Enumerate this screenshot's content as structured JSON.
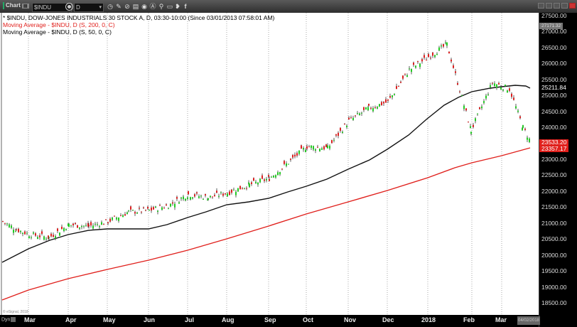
{
  "toolbar": {
    "chart_label": "Chart",
    "chart_badge": "???",
    "symbol": "$INDU",
    "interval": "D",
    "dropdown_glyph": "▾",
    "icons": [
      "link-icon",
      "clock-icon",
      "pencil-icon",
      "drawing-icon",
      "study-icon",
      "play-icon",
      "alert-icon",
      "chain-icon",
      "comment-icon",
      "twitter-icon",
      "facebook-icon"
    ],
    "window_buttons": [
      "restore",
      "minimize-dup",
      "minimize",
      "maximize",
      "close"
    ]
  },
  "legend": [
    {
      "text": "* $INDU, DOW-JONES INDUSTRIALS 30 STOCK A, D, 03:30-10:00 (Since 03/01/2013 07:58:01 AM)",
      "color": "#000000"
    },
    {
      "text": "Moving Average - $INDU, D (S, 200, 0, C)",
      "color": "#e0201c"
    },
    {
      "text": "Moving Average - $INDU, D (S, 50, 0, C)",
      "color": "#000000"
    }
  ],
  "price_tags": {
    "top_gray": "27171.32",
    "ma50": "25211.84",
    "last": "23533.20",
    "ma200": "23357.17"
  },
  "x_axis": {
    "dyn_label": "Dyn",
    "current_date": "04/02/2018",
    "copyright": "© eSignal, 2018"
  },
  "chart_data": {
    "type": "candlestick",
    "title": "$INDU, DOW-JONES INDUSTRIALS 30 STOCK A, D, 03:30-10:00 (Since 03/01/2013 07:58:01 AM)",
    "xlabel": "",
    "ylabel": "",
    "y_tick_labels": [
      "27500.00",
      "27000.00",
      "26500.00",
      "26000.00",
      "25500.00",
      "25000.00",
      "24500.00",
      "24000.00",
      "23500.00",
      "23000.00",
      "22500.00",
      "22000.00",
      "21500.00",
      "21000.00",
      "20500.00",
      "20000.00",
      "19500.00",
      "19000.00",
      "18500.00"
    ],
    "x_tick_labels": [
      "Mar",
      "Apr",
      "May",
      "Jun",
      "Jul",
      "Aug",
      "Sep",
      "Oct",
      "Nov",
      "Dec",
      "2018",
      "Feb",
      "Mar"
    ],
    "ylim": [
      18300,
      27650
    ],
    "grid": "vertical dotted at month boundaries",
    "legend_position": "top-left",
    "approx_close_by_month_start": {
      "Mar 2017": 20800,
      "Apr 2017": 20650,
      "May 2017": 20950,
      "Jun 2017": 21050,
      "Jul 2017": 21350,
      "Aug 2017": 21900,
      "Sep 2017": 21950,
      "Oct 2017": 22400,
      "Nov 2017": 23400,
      "Dec 2017": 24200,
      "Jan 2018": 24800,
      "late Jan 2018 peak": 26600,
      "Feb 2018": 24500,
      "Feb 2018 low": 23800,
      "Mar 2018": 24800,
      "Apr 2 2018": 23533
    },
    "series": [
      {
        "name": "$INDU daily close (approx)",
        "x": [
          "2017-03-01",
          "2017-03-15",
          "2017-04-01",
          "2017-04-15",
          "2017-05-01",
          "2017-05-15",
          "2017-06-01",
          "2017-06-15",
          "2017-07-01",
          "2017-07-15",
          "2017-08-01",
          "2017-08-15",
          "2017-09-01",
          "2017-09-15",
          "2017-10-01",
          "2017-10-15",
          "2017-11-01",
          "2017-11-15",
          "2017-12-01",
          "2017-12-15",
          "2018-01-01",
          "2018-01-15",
          "2018-01-26",
          "2018-02-08",
          "2018-02-15",
          "2018-02-27",
          "2018-03-12",
          "2018-03-22",
          "2018-04-02"
        ],
        "values": [
          21050,
          20800,
          20650,
          20550,
          20950,
          20900,
          21050,
          21350,
          21400,
          21550,
          21900,
          21800,
          21950,
          22200,
          22400,
          22900,
          23400,
          23350,
          24200,
          24600,
          24800,
          25800,
          26600,
          23900,
          24800,
          25400,
          25200,
          24000,
          23533
        ]
      },
      {
        "name": "Moving Average - $INDU, D (S, 200, 0, C)",
        "color": "#e0201c",
        "x": [
          "2017-03-01",
          "2017-06-01",
          "2017-09-01",
          "2017-12-01",
          "2018-02-01",
          "2018-04-02"
        ],
        "values": [
          18700,
          19600,
          20500,
          21500,
          22500,
          23357
        ]
      },
      {
        "name": "Moving Average - $INDU, D (S, 50, 0, C)",
        "color": "#000000",
        "x": [
          "2017-03-01",
          "2017-04-15",
          "2017-06-01",
          "2017-08-01",
          "2017-09-15",
          "2017-11-01",
          "2017-12-15",
          "2018-01-26",
          "2018-03-01",
          "2018-04-02"
        ],
        "values": [
          19800,
          20500,
          20800,
          21350,
          21750,
          22300,
          23200,
          24900,
          25250,
          25212
        ]
      }
    ]
  }
}
